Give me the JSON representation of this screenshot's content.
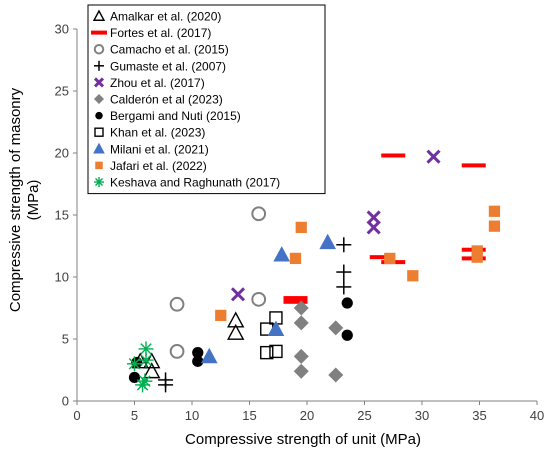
{
  "chart_data": {
    "type": "scatter",
    "title": "",
    "xlabel": "Compressive strength of unit (MPa)",
    "ylabel_lines": [
      "Compressive strength of masonry",
      "(MPa)"
    ],
    "xlim": [
      0,
      40
    ],
    "ylim": [
      0,
      30
    ],
    "xticks": [
      0,
      5,
      10,
      15,
      20,
      25,
      30,
      35,
      40
    ],
    "yticks": [
      0,
      5,
      10,
      15,
      20,
      25,
      30
    ],
    "grid": false,
    "legend_position": "top-left",
    "series": [
      {
        "name": "Amalkar et al. (2020)",
        "marker": "triangle-open",
        "color": "#000000",
        "points": [
          [
            13.8,
            6.5
          ],
          [
            13.8,
            5.5
          ],
          [
            5.5,
            3.2
          ],
          [
            6.5,
            3.2
          ],
          [
            6.5,
            2.4
          ]
        ]
      },
      {
        "name": "Fortes et al. (2017)",
        "marker": "dash",
        "color": "#ff0000",
        "points": [
          [
            27.5,
            19.8
          ],
          [
            34.5,
            19.0
          ],
          [
            19.0,
            8.3
          ],
          [
            19.0,
            8.0
          ],
          [
            26.5,
            11.6
          ],
          [
            27.5,
            11.2
          ],
          [
            34.5,
            12.2
          ],
          [
            34.5,
            11.5
          ]
        ]
      },
      {
        "name": "Camacho et al. (2015)",
        "marker": "circle-open",
        "color": "#808080",
        "points": [
          [
            15.8,
            15.1
          ],
          [
            8.7,
            7.8
          ],
          [
            15.8,
            8.2
          ],
          [
            8.7,
            4.0
          ]
        ]
      },
      {
        "name": "Gumaste et al. (2007)",
        "marker": "plus",
        "color": "#000000",
        "points": [
          [
            23.2,
            12.6
          ],
          [
            23.2,
            10.4
          ],
          [
            23.2,
            9.2
          ],
          [
            7.7,
            1.7
          ],
          [
            7.7,
            1.3
          ]
        ]
      },
      {
        "name": "Zhou et al. (2017)",
        "marker": "x",
        "color": "#7030a0",
        "points": [
          [
            31.0,
            19.7
          ],
          [
            25.8,
            14.8
          ],
          [
            25.8,
            14.0
          ],
          [
            14.0,
            8.6
          ]
        ]
      },
      {
        "name": "Calderón et al (2023)",
        "marker": "diamond",
        "color": "#808080",
        "points": [
          [
            19.5,
            7.5
          ],
          [
            19.5,
            6.3
          ],
          [
            22.5,
            5.9
          ],
          [
            19.5,
            3.6
          ],
          [
            19.5,
            2.4
          ],
          [
            22.5,
            2.1
          ]
        ]
      },
      {
        "name": "Bergami and Nuti (2015)",
        "marker": "circle",
        "color": "#000000",
        "points": [
          [
            23.5,
            7.9
          ],
          [
            23.5,
            5.3
          ],
          [
            10.5,
            3.9
          ],
          [
            10.5,
            3.2
          ],
          [
            5.2,
            3.1
          ],
          [
            5.0,
            1.9
          ]
        ]
      },
      {
        "name": "Khan et al. (2023)",
        "marker": "square-open",
        "color": "#000000",
        "points": [
          [
            17.3,
            6.7
          ],
          [
            16.5,
            5.8
          ],
          [
            16.5,
            3.9
          ],
          [
            17.3,
            4.0
          ]
        ]
      },
      {
        "name": "Milani et al. (2021)",
        "marker": "triangle",
        "color": "#4472c4",
        "points": [
          [
            21.8,
            12.8
          ],
          [
            17.8,
            11.8
          ],
          [
            17.3,
            5.8
          ],
          [
            11.5,
            3.6
          ]
        ]
      },
      {
        "name": "Jafari et al. (2022)",
        "marker": "square",
        "color": "#ed7d31",
        "points": [
          [
            19.5,
            14.0
          ],
          [
            36.3,
            15.3
          ],
          [
            36.3,
            14.1
          ],
          [
            29.2,
            10.1
          ],
          [
            12.5,
            6.9
          ],
          [
            19.0,
            11.5
          ],
          [
            27.2,
            11.5
          ],
          [
            34.8,
            12.1
          ],
          [
            34.8,
            11.6
          ]
        ]
      },
      {
        "name": "Keshava and Raghunath (2017)",
        "marker": "asterisk",
        "color": "#00b050",
        "points": [
          [
            5.0,
            3.0
          ],
          [
            6.0,
            4.2
          ],
          [
            6.0,
            3.3
          ],
          [
            5.9,
            1.6
          ],
          [
            5.7,
            1.3
          ]
        ]
      }
    ]
  }
}
